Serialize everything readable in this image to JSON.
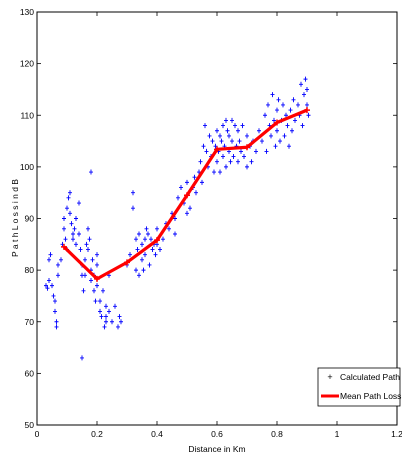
{
  "chart_data": {
    "type": "scatter",
    "xlabel": "Distance in Km",
    "ylabel": "P a t h  L o s s  i n  d B",
    "xlim": [
      0,
      1.2
    ],
    "ylim": [
      50,
      130
    ],
    "xticks": [
      0,
      0.2,
      0.4,
      0.6,
      0.8,
      1,
      1.2
    ],
    "xtick_labels": [
      "0",
      "0.2",
      "0.4",
      "0.6",
      "0.8",
      "1",
      "1.2"
    ],
    "yticks": [
      50,
      60,
      70,
      80,
      90,
      100,
      110,
      120,
      130
    ],
    "ytick_labels": [
      "50",
      "60",
      "70",
      "80",
      "90",
      "100",
      "110",
      "120",
      "130"
    ],
    "grid": false,
    "legend_position": "bottom-right",
    "series": [
      {
        "name": "Calculated Path Loss",
        "style": "blue-plus-markers",
        "color": "#0000ff",
        "points": [
          [
            0.03,
            77
          ],
          [
            0.035,
            76.5
          ],
          [
            0.04,
            78
          ],
          [
            0.04,
            82
          ],
          [
            0.045,
            83
          ],
          [
            0.05,
            77
          ],
          [
            0.055,
            75
          ],
          [
            0.06,
            72
          ],
          [
            0.06,
            74
          ],
          [
            0.065,
            70
          ],
          [
            0.065,
            69
          ],
          [
            0.07,
            79
          ],
          [
            0.07,
            81
          ],
          [
            0.08,
            82
          ],
          [
            0.085,
            85
          ],
          [
            0.09,
            90
          ],
          [
            0.09,
            88
          ],
          [
            0.095,
            86
          ],
          [
            0.1,
            84
          ],
          [
            0.1,
            92
          ],
          [
            0.105,
            94
          ],
          [
            0.11,
            95
          ],
          [
            0.11,
            91
          ],
          [
            0.115,
            89
          ],
          [
            0.12,
            87
          ],
          [
            0.12,
            86
          ],
          [
            0.125,
            88
          ],
          [
            0.13,
            85
          ],
          [
            0.13,
            90
          ],
          [
            0.14,
            93
          ],
          [
            0.14,
            87
          ],
          [
            0.145,
            84
          ],
          [
            0.15,
            81
          ],
          [
            0.15,
            79
          ],
          [
            0.155,
            76
          ],
          [
            0.16,
            79
          ],
          [
            0.16,
            82
          ],
          [
            0.165,
            85
          ],
          [
            0.17,
            88
          ],
          [
            0.17,
            84
          ],
          [
            0.175,
            86
          ],
          [
            0.18,
            80
          ],
          [
            0.18,
            78
          ],
          [
            0.185,
            82
          ],
          [
            0.19,
            76
          ],
          [
            0.19,
            79
          ],
          [
            0.195,
            74
          ],
          [
            0.2,
            81
          ],
          [
            0.2,
            83
          ],
          [
            0.2,
            77
          ],
          [
            0.21,
            72
          ],
          [
            0.21,
            74
          ],
          [
            0.215,
            71
          ],
          [
            0.22,
            76
          ],
          [
            0.225,
            69
          ],
          [
            0.23,
            73
          ],
          [
            0.23,
            70
          ],
          [
            0.24,
            79
          ],
          [
            0.24,
            72
          ],
          [
            0.25,
            70
          ],
          [
            0.26,
            73
          ],
          [
            0.27,
            69
          ],
          [
            0.275,
            71
          ],
          [
            0.28,
            70
          ],
          [
            0.15,
            63
          ],
          [
            0.18,
            99
          ],
          [
            0.23,
            71
          ],
          [
            0.3,
            81
          ],
          [
            0.31,
            83
          ],
          [
            0.32,
            95
          ],
          [
            0.32,
            92
          ],
          [
            0.33,
            86
          ],
          [
            0.33,
            80
          ],
          [
            0.335,
            84
          ],
          [
            0.34,
            87
          ],
          [
            0.34,
            79
          ],
          [
            0.35,
            82
          ],
          [
            0.35,
            85
          ],
          [
            0.355,
            80
          ],
          [
            0.36,
            86
          ],
          [
            0.36,
            83
          ],
          [
            0.365,
            88
          ],
          [
            0.37,
            87
          ],
          [
            0.375,
            81
          ],
          [
            0.38,
            86
          ],
          [
            0.385,
            84
          ],
          [
            0.39,
            85
          ],
          [
            0.395,
            83
          ],
          [
            0.4,
            85
          ],
          [
            0.4,
            88
          ],
          [
            0.41,
            84
          ],
          [
            0.42,
            86
          ],
          [
            0.43,
            89
          ],
          [
            0.44,
            88
          ],
          [
            0.45,
            91
          ],
          [
            0.46,
            87
          ],
          [
            0.46,
            90
          ],
          [
            0.47,
            94
          ],
          [
            0.48,
            96
          ],
          [
            0.49,
            93
          ],
          [
            0.5,
            91
          ],
          [
            0.5,
            97
          ],
          [
            0.51,
            92
          ],
          [
            0.52,
            96
          ],
          [
            0.525,
            98
          ],
          [
            0.53,
            95
          ],
          [
            0.54,
            99
          ],
          [
            0.545,
            101
          ],
          [
            0.55,
            97
          ],
          [
            0.555,
            104
          ],
          [
            0.56,
            108
          ],
          [
            0.565,
            103
          ],
          [
            0.57,
            100
          ],
          [
            0.575,
            106
          ],
          [
            0.58,
            102
          ],
          [
            0.585,
            105
          ],
          [
            0.59,
            99
          ],
          [
            0.595,
            104
          ],
          [
            0.6,
            107
          ],
          [
            0.6,
            101
          ],
          [
            0.605,
            103
          ],
          [
            0.61,
            106
          ],
          [
            0.61,
            99
          ],
          [
            0.615,
            105
          ],
          [
            0.62,
            108
          ],
          [
            0.62,
            102
          ],
          [
            0.625,
            104
          ],
          [
            0.63,
            109
          ],
          [
            0.63,
            100
          ],
          [
            0.635,
            107
          ],
          [
            0.64,
            103
          ],
          [
            0.64,
            106
          ],
          [
            0.645,
            101
          ],
          [
            0.65,
            105
          ],
          [
            0.65,
            109
          ],
          [
            0.655,
            102
          ],
          [
            0.66,
            108
          ],
          [
            0.665,
            104
          ],
          [
            0.67,
            107
          ],
          [
            0.67,
            101
          ],
          [
            0.675,
            105
          ],
          [
            0.68,
            103
          ],
          [
            0.685,
            108
          ],
          [
            0.69,
            102
          ],
          [
            0.7,
            100
          ],
          [
            0.7,
            106
          ],
          [
            0.71,
            104
          ],
          [
            0.715,
            101
          ],
          [
            0.72,
            105
          ],
          [
            0.73,
            103
          ],
          [
            0.74,
            107
          ],
          [
            0.75,
            105
          ],
          [
            0.76,
            110
          ],
          [
            0.765,
            103
          ],
          [
            0.77,
            112
          ],
          [
            0.775,
            108
          ],
          [
            0.78,
            106
          ],
          [
            0.785,
            114
          ],
          [
            0.79,
            109
          ],
          [
            0.795,
            104
          ],
          [
            0.8,
            111
          ],
          [
            0.8,
            107
          ],
          [
            0.805,
            113
          ],
          [
            0.81,
            105
          ],
          [
            0.815,
            109
          ],
          [
            0.82,
            112
          ],
          [
            0.825,
            106
          ],
          [
            0.83,
            110
          ],
          [
            0.835,
            108
          ],
          [
            0.84,
            104
          ],
          [
            0.845,
            111
          ],
          [
            0.85,
            107
          ],
          [
            0.855,
            113
          ],
          [
            0.86,
            109
          ],
          [
            0.87,
            112
          ],
          [
            0.875,
            110
          ],
          [
            0.88,
            116
          ],
          [
            0.885,
            108
          ],
          [
            0.89,
            114
          ],
          [
            0.895,
            117
          ],
          [
            0.9,
            112
          ],
          [
            0.9,
            115
          ],
          [
            0.905,
            110
          ]
        ]
      },
      {
        "name": "Mean Path Loss",
        "style": "red-line-with-plus-markers",
        "color": "#ff0000",
        "x": [
          0.09,
          0.2,
          0.3,
          0.4,
          0.5,
          0.6,
          0.7,
          0.8,
          0.9
        ],
        "y": [
          84.5,
          78.3,
          81.5,
          85.8,
          94.5,
          103.4,
          103.8,
          108.6,
          111
        ]
      }
    ]
  }
}
